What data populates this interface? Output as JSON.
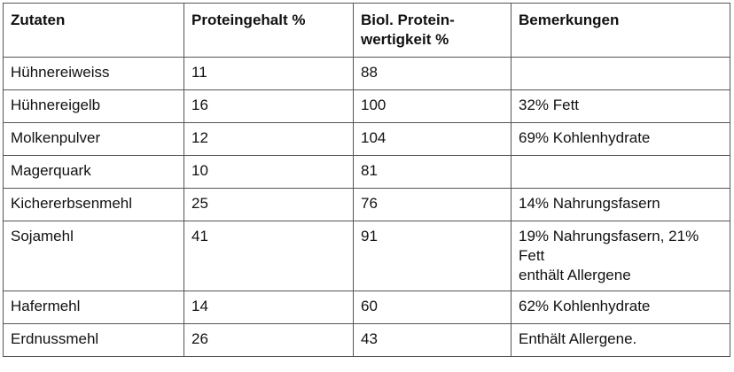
{
  "table": {
    "headers": [
      "Zutaten",
      "Proteingehalt %",
      "Biol. Protein-wertigkeit %",
      "Bemerkungen"
    ],
    "header_lines": [
      [
        "Zutaten"
      ],
      [
        "Proteingehalt %"
      ],
      [
        "Biol. Protein-",
        "wertigkeit %"
      ],
      [
        "Bemerkungen"
      ]
    ],
    "rows": [
      {
        "zutat": "Hühnereiweiss",
        "protein": "11",
        "wertigkeit": "88",
        "bemerkungen": []
      },
      {
        "zutat": "Hühnereigelb",
        "protein": "16",
        "wertigkeit": "100",
        "bemerkungen": [
          "32% Fett"
        ]
      },
      {
        "zutat": "Molkenpulver",
        "protein": "12",
        "wertigkeit": "104",
        "bemerkungen": [
          "69% Kohlenhydrate"
        ]
      },
      {
        "zutat": "Magerquark",
        "protein": "10",
        "wertigkeit": "81",
        "bemerkungen": []
      },
      {
        "zutat": "Kichererbsenmehl",
        "protein": "25",
        "wertigkeit": "76",
        "bemerkungen": [
          "14% Nahrungsfasern"
        ]
      },
      {
        "zutat": "Sojamehl",
        "protein": "41",
        "wertigkeit": "91",
        "bemerkungen": [
          "19% Nahrungsfasern, 21%",
          "Fett",
          "enthält Allergene"
        ]
      },
      {
        "zutat": "Hafermehl",
        "protein": "14",
        "wertigkeit": "60",
        "bemerkungen": [
          "62% Kohlenhydrate"
        ]
      },
      {
        "zutat": "Erdnussmehl",
        "protein": "26",
        "wertigkeit": "43",
        "bemerkungen": [
          "Enthält Allergene."
        ]
      }
    ]
  }
}
